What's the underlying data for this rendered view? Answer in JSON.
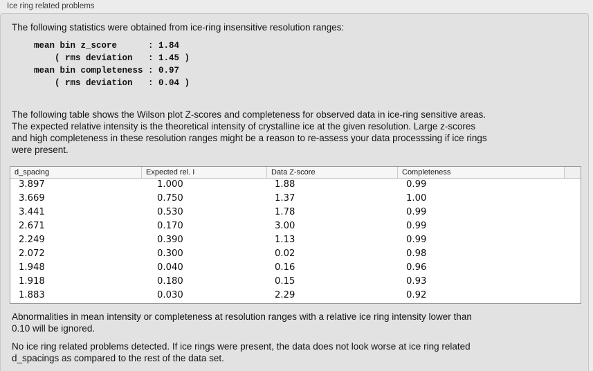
{
  "group": {
    "title": "Ice ring related problems"
  },
  "paragraphs": {
    "stats_intro": "The following statistics were obtained from ice-ring insensitive resolution ranges:",
    "table_desc_lines": [
      "The following table shows the Wilson plot Z-scores and completeness for observed data in ice-ring sensitive areas.",
      "The expected relative intensity is the theoretical intensity of crystalline ice at the given resolution. Large z-scores",
      "and high completeness in these resolution ranges might be a reason to re-assess your data processsing if ice rings",
      "were present."
    ],
    "ignore_note_lines": [
      "Abnormalities in mean intensity or completeness at resolution ranges with a relative ice ring intensity lower than",
      "0.10 will be ignored."
    ],
    "conclusion_lines": [
      "No ice ring related problems detected. If ice rings were present, the data does not look worse at ice ring related",
      "d_spacings as compared to the rest of the data set."
    ]
  },
  "stats_lines": [
    "mean bin z_score      : 1.84",
    "    ( rms deviation   : 1.45 )",
    "mean bin completeness : 0.97",
    "    ( rms deviation   : 0.04 )"
  ],
  "table": {
    "headers": [
      "d_spacing",
      "Expected rel. I",
      "Data Z-score",
      "Completeness"
    ],
    "rows": [
      [
        "3.897",
        "1.000",
        "1.88",
        "0.99"
      ],
      [
        "3.669",
        "0.750",
        "1.37",
        "1.00"
      ],
      [
        "3.441",
        "0.530",
        "1.78",
        "0.99"
      ],
      [
        "2.671",
        "0.170",
        "3.00",
        "0.99"
      ],
      [
        "2.249",
        "0.390",
        "1.13",
        "0.99"
      ],
      [
        "2.072",
        "0.300",
        "0.02",
        "0.98"
      ],
      [
        "1.948",
        "0.040",
        "0.16",
        "0.96"
      ],
      [
        "1.918",
        "0.180",
        "0.15",
        "0.93"
      ],
      [
        "1.883",
        "0.030",
        "2.29",
        "0.92"
      ]
    ]
  },
  "colors": {
    "outer_bg": "#ececec",
    "panel_bg": "#e2e2e2",
    "table_border": "#999999",
    "header_bg": "#f6f6f6"
  }
}
